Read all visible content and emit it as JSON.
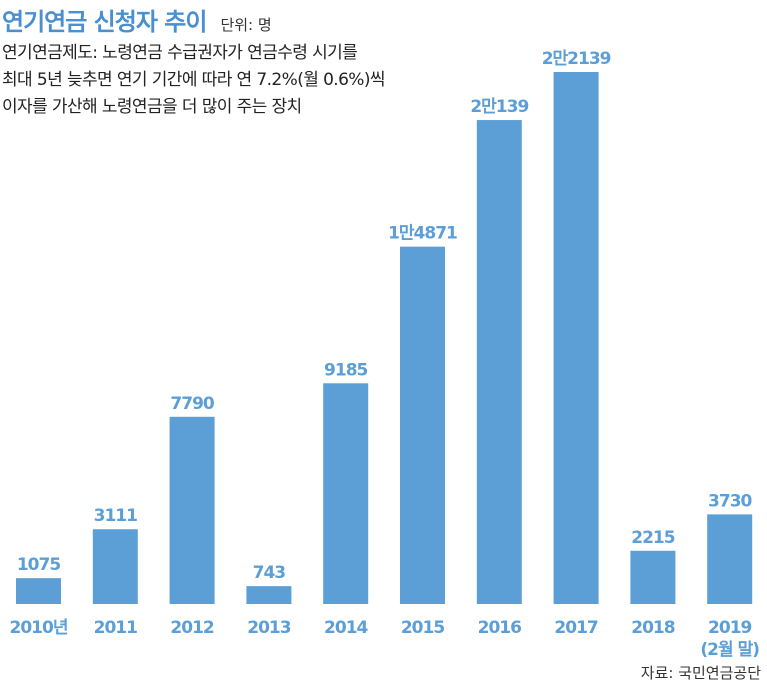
{
  "header": {
    "title": "연기연금 신청자 추이",
    "unit": "단위: 명"
  },
  "description": [
    "연기연금제도: 노령연금 수급권자가 연금수령 시기를",
    "최대 5년 늦추면 연기 기간에 따라 연 7.2%(월 0.6%)씩",
    "이자를 가산해 노령연금을 더 많이 주는 장치"
  ],
  "source": "자료: 국민연금공단",
  "colors": {
    "title": "#4a90d0",
    "bar": "#5b9fd6",
    "label": "#5b9fd6"
  },
  "chart_data": {
    "type": "bar",
    "title": "연기연금 신청자 추이",
    "categories": [
      "2010년",
      "2011",
      "2012",
      "2013",
      "2014",
      "2015",
      "2016",
      "2017",
      "2018",
      "2019 (2월 말)"
    ],
    "category_lines": [
      [
        "2010년"
      ],
      [
        "2011"
      ],
      [
        "2012"
      ],
      [
        "2013"
      ],
      [
        "2014"
      ],
      [
        "2015"
      ],
      [
        "2016"
      ],
      [
        "2017"
      ],
      [
        "2018"
      ],
      [
        "2019",
        "(2월 말)"
      ]
    ],
    "values": [
      1075,
      3111,
      7790,
      743,
      9185,
      14871,
      20139,
      22139,
      2215,
      3730
    ],
    "value_labels": [
      "1075",
      "3111",
      "7790",
      "743",
      "9185",
      "1만4871",
      "2만139",
      "2만2139",
      "2215",
      "3730"
    ],
    "ylim": [
      0,
      22139
    ],
    "grid": false,
    "legend": "none"
  }
}
